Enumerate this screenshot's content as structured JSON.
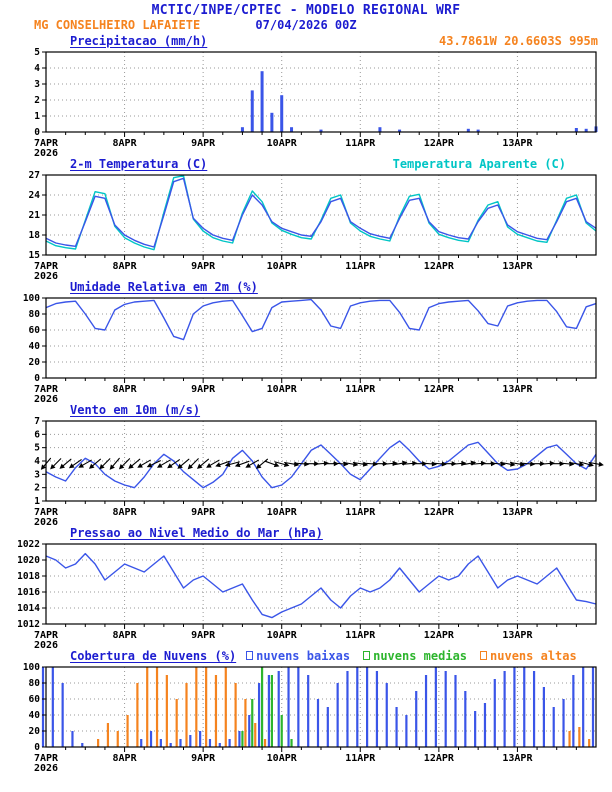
{
  "header": {
    "title": "MCTIC/INPE/CPTEC - MODELO REGIONAL WRF",
    "location": "MG CONSELHEIRO LAFAIETE",
    "datetime": "07/04/2026 00Z",
    "coords": "43.7861W 20.6603S 995m"
  },
  "colors": {
    "text_blue": "#1c1cd0",
    "orange": "#f5831f",
    "line_blue": "#3a55e8",
    "cyan": "#00c5c5",
    "green": "#2db52d",
    "black": "#000000",
    "grid_gray": "#999999"
  },
  "x_axis": {
    "labels": [
      "7APR",
      "8APR",
      "9APR",
      "10APR",
      "11APR",
      "12APR",
      "13APR"
    ],
    "year": "2026",
    "hours_total": 168,
    "step_hours": 3
  },
  "chart_data": [
    {
      "id": "precipitacao",
      "type": "bar",
      "title": "Precipitacao (mm/h)",
      "ylabel": "mm/h",
      "ylim": [
        0,
        5
      ],
      "yticks": [
        0,
        1,
        2,
        3,
        4,
        5
      ],
      "values": [
        0,
        0,
        0,
        0,
        0,
        0,
        0,
        0,
        0,
        0,
        0,
        0,
        0,
        0,
        0,
        0,
        0,
        0,
        0,
        0,
        0.3,
        2.6,
        3.8,
        1.2,
        2.3,
        0.3,
        0,
        0,
        0.15,
        0,
        0,
        0,
        0,
        0,
        0.3,
        0,
        0.15,
        0,
        0,
        0,
        0,
        0,
        0,
        0.2,
        0.15,
        0,
        0,
        0,
        0,
        0,
        0,
        0,
        0,
        0,
        0.25,
        0.2,
        0.35
      ]
    },
    {
      "id": "temperatura",
      "type": "line",
      "title": "2-m Temperatura (C)",
      "ylim": [
        15,
        27
      ],
      "yticks": [
        15,
        18,
        21,
        24,
        27
      ],
      "series": [
        {
          "name": "2-m Temperatura (C)",
          "color_key": "line_blue",
          "values": [
            17.5,
            16.8,
            16.5,
            16.3,
            20,
            23.8,
            23.5,
            19.5,
            18,
            17.2,
            16.6,
            16.2,
            21,
            26,
            26.5,
            20.5,
            19,
            18,
            17.5,
            17.2,
            21,
            24,
            22.5,
            20,
            19,
            18.5,
            18,
            17.8,
            20,
            23,
            23.5,
            20,
            19,
            18.2,
            17.8,
            17.5,
            20.5,
            23.2,
            23.5,
            20,
            18.5,
            18,
            17.6,
            17.4,
            20,
            22,
            22.5,
            19.5,
            18.5,
            18,
            17.5,
            17.3,
            20,
            23,
            23.5,
            20,
            19
          ]
        },
        {
          "name": "Temperatura Aparente (C)",
          "color_key": "cyan",
          "values": [
            17.1,
            16.4,
            16.1,
            15.9,
            20.2,
            24.5,
            24.2,
            19.3,
            17.6,
            16.8,
            16.2,
            15.8,
            21.4,
            26.6,
            26.9,
            20.4,
            18.6,
            17.6,
            17.1,
            16.8,
            21.3,
            24.6,
            23,
            19.8,
            18.7,
            18.1,
            17.6,
            17.4,
            20.2,
            23.5,
            24,
            19.8,
            18.6,
            17.8,
            17.4,
            17.1,
            20.8,
            23.8,
            24.1,
            19.8,
            18.1,
            17.6,
            17.2,
            17,
            20.2,
            22.5,
            23,
            19.2,
            18.1,
            17.6,
            17.1,
            16.9,
            20.2,
            23.5,
            24,
            19.8,
            18.6
          ]
        }
      ]
    },
    {
      "id": "umidade",
      "type": "line",
      "title": "Umidade Relativa em 2m (%)",
      "ylim": [
        0,
        100
      ],
      "yticks": [
        0,
        20,
        40,
        60,
        80,
        100
      ],
      "series": [
        {
          "name": "Umidade Relativa em 2m (%)",
          "color_key": "line_blue",
          "values": [
            88,
            93,
            95,
            96,
            80,
            62,
            60,
            85,
            92,
            95,
            96,
            97,
            75,
            52,
            48,
            80,
            90,
            94,
            96,
            97,
            78,
            58,
            62,
            88,
            95,
            96,
            97,
            98,
            85,
            65,
            62,
            90,
            94,
            96,
            97,
            97,
            82,
            62,
            60,
            88,
            93,
            95,
            96,
            97,
            84,
            68,
            65,
            90,
            94,
            96,
            97,
            97,
            83,
            64,
            62,
            89,
            93
          ]
        }
      ]
    },
    {
      "id": "vento",
      "type": "line",
      "title": "Vento em 10m (m/s)",
      "ylim": [
        1,
        7
      ],
      "yticks": [
        1,
        2,
        3,
        4,
        5,
        6,
        7
      ],
      "series": [
        {
          "name": "Vento em 10m (m/s)",
          "color_key": "line_blue",
          "values": [
            3.2,
            2.8,
            2.5,
            3.5,
            4.2,
            3.8,
            3,
            2.5,
            2.2,
            2,
            2.8,
            3.8,
            4.5,
            4,
            3.2,
            2.6,
            2,
            2.4,
            3,
            4.2,
            4.8,
            4,
            2.8,
            2,
            2.2,
            2.8,
            3.8,
            4.8,
            5.2,
            4.5,
            3.8,
            3,
            2.6,
            3.4,
            4.2,
            5,
            5.5,
            4.8,
            4,
            3.4,
            3.6,
            4,
            4.6,
            5.2,
            5.4,
            4.6,
            3.8,
            3.3,
            3.4,
            3.8,
            4.4,
            5,
            5.2,
            4.5,
            3.8,
            3.4,
            4.5
          ]
        }
      ],
      "arrows": {
        "y": 3.8,
        "angles_deg": [
          130,
          135,
          140,
          145,
          150,
          140,
          135,
          130,
          135,
          140,
          150,
          155,
          150,
          145,
          140,
          135,
          140,
          150,
          160,
          165,
          160,
          150,
          140,
          20,
          15,
          10,
          5,
          0,
          -5,
          0,
          5,
          10,
          10,
          5,
          0,
          -5,
          -10,
          -5,
          0,
          5,
          5,
          0,
          -5,
          -10,
          -5,
          0,
          5,
          10,
          10,
          5,
          0,
          -5,
          0,
          5,
          10,
          15,
          10
        ]
      }
    },
    {
      "id": "pressao",
      "type": "line",
      "title": "Pressao ao Nivel Medio do Mar (hPa)",
      "ylim": [
        1012,
        1022
      ],
      "yticks": [
        1012,
        1014,
        1016,
        1018,
        1020,
        1022
      ],
      "series": [
        {
          "name": "Pressao ao Nivel Medio do Mar (hPa)",
          "color_key": "line_blue",
          "values": [
            1020.5,
            1020,
            1019,
            1019.5,
            1020.8,
            1019.5,
            1017.5,
            1018.5,
            1019.5,
            1019,
            1018.5,
            1019.5,
            1020.5,
            1018.5,
            1016.5,
            1017.5,
            1018,
            1017,
            1016,
            1016.5,
            1017,
            1015,
            1013.2,
            1012.8,
            1013.5,
            1014,
            1014.5,
            1015.5,
            1016.5,
            1015,
            1014,
            1015.5,
            1016.5,
            1016,
            1016.5,
            1017.5,
            1019,
            1017.5,
            1016,
            1017,
            1018,
            1017.5,
            1018,
            1019.5,
            1020.5,
            1018.5,
            1016.5,
            1017.5,
            1018,
            1017.5,
            1017,
            1018,
            1019,
            1017,
            1015,
            1014.8,
            1014.5
          ]
        }
      ]
    },
    {
      "id": "nuvens",
      "type": "multibar",
      "title": "Cobertura de Nuvens (%)",
      "ylim": [
        0,
        100
      ],
      "yticks": [
        0,
        20,
        40,
        60,
        80,
        100
      ],
      "series": [
        {
          "name": "nuvens baixas",
          "color_key": "line_blue",
          "values": [
            100,
            100,
            80,
            20,
            5,
            0,
            0,
            0,
            0,
            0,
            10,
            20,
            10,
            5,
            10,
            15,
            20,
            10,
            5,
            10,
            20,
            40,
            80,
            90,
            95,
            100,
            100,
            90,
            60,
            50,
            80,
            95,
            100,
            100,
            95,
            80,
            50,
            40,
            70,
            90,
            100,
            95,
            90,
            70,
            45,
            55,
            85,
            95,
            100,
            100,
            95,
            75,
            50,
            60,
            90,
            100,
            100
          ]
        },
        {
          "name": "nuvens medias",
          "color_key": "green",
          "values": [
            0,
            0,
            0,
            0,
            0,
            0,
            0,
            0,
            0,
            0,
            0,
            0,
            0,
            0,
            0,
            0,
            0,
            0,
            0,
            0,
            20,
            60,
            100,
            90,
            40,
            10,
            0,
            0,
            0,
            0,
            0,
            0,
            0,
            0,
            0,
            0,
            0,
            0,
            0,
            0,
            0,
            0,
            0,
            0,
            0,
            0,
            0,
            0,
            0,
            0,
            0,
            0,
            0,
            0,
            0,
            0,
            0
          ]
        },
        {
          "name": "nuvens altas",
          "color_key": "orange",
          "values": [
            0,
            0,
            0,
            0,
            0,
            10,
            30,
            20,
            40,
            80,
            100,
            100,
            90,
            60,
            80,
            100,
            100,
            90,
            100,
            80,
            60,
            30,
            10,
            0,
            0,
            0,
            0,
            0,
            0,
            0,
            0,
            0,
            0,
            0,
            0,
            0,
            0,
            0,
            0,
            0,
            0,
            0,
            0,
            0,
            0,
            0,
            0,
            0,
            0,
            0,
            0,
            0,
            0,
            20,
            25,
            10,
            0
          ]
        }
      ]
    }
  ]
}
